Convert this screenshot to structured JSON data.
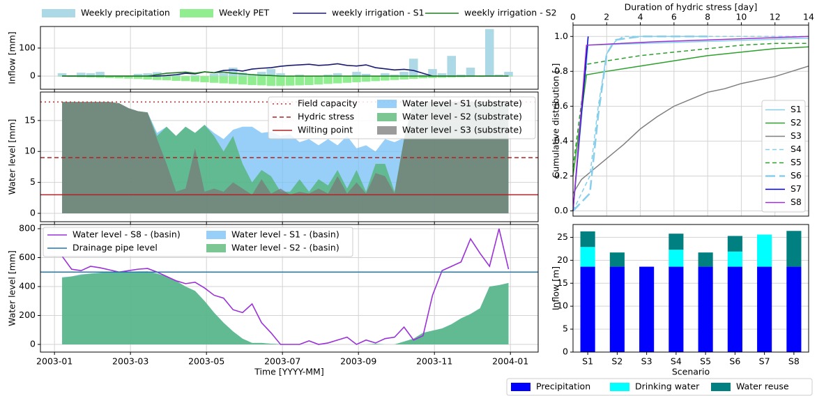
{
  "chart_data": [
    {
      "type": "combo",
      "ylabel": "Inflow [mm]",
      "grid": true,
      "xlim": [
        -0.37,
        12.73
      ],
      "xticks": [
        0,
        2,
        4,
        6,
        8,
        10,
        12
      ],
      "ylim": [
        -47,
        177
      ],
      "yticks": [
        0,
        100
      ],
      "x": [
        0.2,
        0.45,
        0.7,
        0.95,
        1.2,
        1.45,
        1.7,
        1.95,
        2.2,
        2.45,
        2.7,
        2.95,
        3.2,
        3.45,
        3.7,
        3.95,
        4.2,
        4.45,
        4.7,
        4.95,
        5.2,
        5.45,
        5.7,
        5.95,
        6.2,
        6.45,
        6.7,
        6.95,
        7.2,
        7.45,
        7.7,
        7.95,
        8.2,
        8.45,
        8.7,
        8.95,
        9.2,
        9.45,
        9.7,
        9.95,
        10.2,
        10.45,
        10.7,
        10.95,
        11.2,
        11.45,
        11.7,
        11.95
      ],
      "series": [
        {
          "name": "Weekly precipitation",
          "kind": "bar",
          "color": "#add8e6",
          "values": [
            10,
            3,
            12,
            10,
            15,
            0,
            0,
            0,
            8,
            10,
            14,
            2,
            5,
            0,
            3,
            0,
            8,
            10,
            30,
            12,
            5,
            15,
            25,
            10,
            0,
            5,
            0,
            0,
            5,
            10,
            0,
            15,
            8,
            0,
            10,
            5,
            15,
            62,
            5,
            25,
            10,
            72,
            5,
            30,
            0,
            168,
            5,
            15
          ]
        },
        {
          "name": "Weekly PET",
          "kind": "bar",
          "color": "#90ee90",
          "values": [
            -2,
            -3,
            -4,
            -5,
            -6,
            -7,
            -8,
            -9,
            -10,
            -12,
            -14,
            -15,
            -17,
            -18,
            -20,
            -22,
            -24,
            -26,
            -28,
            -30,
            -32,
            -33,
            -35,
            -35,
            -34,
            -33,
            -32,
            -30,
            -28,
            -26,
            -24,
            -22,
            -20,
            -18,
            -16,
            -14,
            -12,
            -10,
            -8,
            -7,
            -6,
            -5,
            -4,
            -3,
            -3,
            -2,
            -2,
            -2
          ]
        },
        {
          "name": "weekly irrigation - S1",
          "kind": "line",
          "color": "#191970",
          "values": [
            0,
            0,
            0,
            0,
            0,
            0,
            0,
            0,
            0,
            0,
            0,
            2,
            5,
            10,
            8,
            15,
            12,
            20,
            22,
            18,
            25,
            28,
            30,
            35,
            38,
            40,
            42,
            38,
            40,
            44,
            38,
            36,
            40,
            30,
            26,
            22,
            24,
            20,
            10,
            0,
            0,
            0,
            0,
            0,
            0,
            0,
            0,
            0
          ]
        },
        {
          "name": "weekly irrigation - S2",
          "kind": "line",
          "color": "#1e7b1e",
          "values": [
            0,
            0,
            0,
            0,
            0,
            0,
            0,
            0,
            0,
            0,
            5,
            10,
            12,
            14,
            10,
            15,
            12,
            14,
            10,
            8,
            5,
            3,
            2,
            0,
            0,
            0,
            0,
            0,
            0,
            0,
            0,
            0,
            0,
            0,
            0,
            0,
            0,
            0,
            0,
            0,
            0,
            0,
            0,
            0,
            0,
            0,
            0,
            0
          ]
        }
      ]
    },
    {
      "type": "combo",
      "ylabel": "Water level [mm]",
      "grid": true,
      "xlim": [
        -0.37,
        12.73
      ],
      "xticks": [
        0,
        2,
        4,
        6,
        8,
        10,
        12
      ],
      "ylim": [
        -1.35,
        19.6
      ],
      "yticks": [
        0,
        5,
        10,
        15
      ],
      "x": [
        0.2,
        0.45,
        0.7,
        0.95,
        1.2,
        1.45,
        1.7,
        1.95,
        2.2,
        2.45,
        2.7,
        2.95,
        3.2,
        3.45,
        3.7,
        3.95,
        4.2,
        4.45,
        4.7,
        4.95,
        5.2,
        5.45,
        5.7,
        5.95,
        6.2,
        6.45,
        6.7,
        6.95,
        7.2,
        7.45,
        7.7,
        7.95,
        8.2,
        8.45,
        8.7,
        8.95,
        9.2,
        9.45,
        9.7,
        9.95,
        10.2,
        10.45,
        10.7,
        10.95,
        11.2,
        11.45,
        11.7,
        11.95
      ],
      "series": [
        {
          "name": "Field capacity",
          "kind": "hline",
          "linestyle": "dotted",
          "color": "#d62728",
          "value": 18
        },
        {
          "name": "Hydric stress",
          "kind": "hline",
          "linestyle": "dashed",
          "color": "#b22222",
          "value": 9
        },
        {
          "name": "Wilting point",
          "kind": "hline",
          "linestyle": "solid",
          "color": "#b22222",
          "value": 3
        },
        {
          "name": "Water level -  S1 (substrate)",
          "kind": "area",
          "color": "#74bff5",
          "values": [
            18,
            18,
            18,
            18,
            18,
            18,
            17.8,
            17,
            16.5,
            16.3,
            13,
            14,
            12.5,
            14,
            13,
            14.3,
            13,
            12,
            13.5,
            14,
            14,
            13,
            13.2,
            12.5,
            12.8,
            11.5,
            12,
            11,
            12,
            11,
            12.5,
            10.5,
            11,
            10,
            12,
            11.5,
            12.2,
            18,
            18,
            18,
            18,
            18,
            18,
            18,
            18,
            18,
            18,
            18
          ]
        },
        {
          "name": "Water level - S2 (substrate)",
          "kind": "area",
          "color": "#4fb36f",
          "values": [
            18,
            18,
            18,
            18,
            18,
            18,
            17.8,
            17,
            16.5,
            16.3,
            12.5,
            14,
            12.5,
            14,
            13,
            14.3,
            12.5,
            10,
            12.5,
            8,
            5,
            7,
            6,
            3.5,
            3.5,
            5.5,
            3.5,
            5.5,
            4.5,
            7,
            4,
            7,
            3.5,
            8,
            8,
            3.5,
            12,
            18,
            18,
            18,
            18,
            18,
            18,
            18,
            18,
            18,
            18,
            18
          ]
        },
        {
          "name": "Water level - S3 (substrate)",
          "kind": "area",
          "color": "#7a7a7a",
          "values": [
            18,
            18,
            18,
            18,
            18,
            18,
            17.8,
            17,
            16.5,
            16.3,
            12,
            8,
            3.5,
            4,
            10.5,
            3.5,
            4,
            3.5,
            5,
            4,
            3,
            5.5,
            3.2,
            4,
            3,
            3.5,
            3.2,
            4,
            3.2,
            6,
            3.2,
            5,
            3.2,
            6.5,
            6,
            3.2,
            12,
            18,
            18,
            18,
            18,
            18,
            18,
            18,
            18,
            18,
            18,
            18
          ]
        }
      ]
    },
    {
      "type": "combo",
      "ylabel": "Water level [mm]",
      "xlabel": "Time [YYYY-MM]",
      "grid": true,
      "xlim": [
        -0.37,
        12.73
      ],
      "xticks": [
        {
          "value": 0,
          "label": "2003-01"
        },
        {
          "value": 2,
          "label": "2003-03"
        },
        {
          "value": 4,
          "label": "2003-05"
        },
        {
          "value": 6,
          "label": "2003-07"
        },
        {
          "value": 8,
          "label": "2003-09"
        },
        {
          "value": 10,
          "label": "2003-11"
        },
        {
          "value": 12,
          "label": "2004-01"
        }
      ],
      "ylim": [
        -53,
        829
      ],
      "yticks": [
        0,
        200,
        400,
        600,
        800
      ],
      "x": [
        0.2,
        0.45,
        0.7,
        0.95,
        1.2,
        1.45,
        1.7,
        1.95,
        2.2,
        2.45,
        2.7,
        2.95,
        3.2,
        3.45,
        3.7,
        3.95,
        4.2,
        4.45,
        4.7,
        4.95,
        5.2,
        5.45,
        5.7,
        5.95,
        6.2,
        6.45,
        6.7,
        6.95,
        7.2,
        7.45,
        7.7,
        7.95,
        8.2,
        8.45,
        8.7,
        8.95,
        9.2,
        9.45,
        9.7,
        9.95,
        10.2,
        10.45,
        10.7,
        10.95,
        11.2,
        11.45,
        11.7,
        11.95
      ],
      "series": [
        {
          "name": "Water level - S8 - (basin)",
          "kind": "line",
          "color": "#9b30d9",
          "values": [
            610,
            520,
            510,
            540,
            530,
            515,
            500,
            510,
            520,
            525,
            500,
            470,
            440,
            420,
            430,
            390,
            340,
            320,
            240,
            220,
            280,
            150,
            80,
            0,
            0,
            0,
            25,
            0,
            10,
            30,
            50,
            0,
            30,
            10,
            40,
            50,
            120,
            30,
            60,
            340,
            510,
            540,
            570,
            730,
            630,
            540,
            800,
            520
          ]
        },
        {
          "name": "Drainage pipe level",
          "kind": "hline",
          "linestyle": "solid",
          "color": "#1f77b4",
          "value": 500
        },
        {
          "name": "Water level - S1 - (basin)",
          "kind": "area",
          "color": "#74bff5",
          "values": [
            465,
            470,
            485,
            490,
            495,
            500,
            505,
            500,
            505,
            505,
            490,
            470,
            440,
            400,
            370,
            300,
            220,
            150,
            90,
            40,
            10,
            10,
            5,
            2,
            0,
            0,
            0,
            0,
            0,
            0,
            0,
            0,
            0,
            5,
            0,
            0,
            20,
            40,
            80,
            95,
            110,
            140,
            180,
            210,
            250,
            400,
            410,
            425
          ]
        },
        {
          "name": "Water level - S2 - (basin)",
          "kind": "area",
          "color": "#4fb36f",
          "values": [
            460,
            470,
            480,
            490,
            495,
            500,
            500,
            500,
            500,
            505,
            490,
            470,
            440,
            400,
            370,
            300,
            220,
            150,
            90,
            40,
            10,
            10,
            5,
            2,
            0,
            0,
            0,
            0,
            0,
            0,
            0,
            0,
            0,
            5,
            0,
            0,
            20,
            40,
            80,
            95,
            110,
            140,
            180,
            210,
            250,
            400,
            410,
            425
          ]
        }
      ]
    },
    {
      "type": "line",
      "xlabel": "Duration of hydric stress [day]",
      "ylabel": "Cumulative distribution [-]",
      "grid": true,
      "legend": "lower right",
      "xlim": [
        0,
        14
      ],
      "xticks": [
        0,
        2,
        4,
        6,
        8,
        10,
        12,
        14
      ],
      "ylim": [
        -0.03,
        1.065
      ],
      "yticks": [
        {
          "value": 0,
          "label": "0.0"
        },
        0.2,
        0.4,
        0.6,
        0.8,
        {
          "value": 1,
          "label": "1.0"
        }
      ],
      "series": [
        {
          "name": "S1",
          "color": "#87ceeb",
          "linestyle": "solid",
          "x": [
            0,
            0.9,
            14
          ],
          "y": [
            0,
            0.95,
            0.99
          ]
        },
        {
          "name": "S2",
          "color": "#2ca02c",
          "linestyle": "solid",
          "x": [
            0,
            0.8,
            2,
            4,
            6,
            8,
            10,
            12,
            14
          ],
          "y": [
            0.2,
            0.78,
            0.8,
            0.83,
            0.86,
            0.89,
            0.91,
            0.93,
            0.94
          ]
        },
        {
          "name": "S3",
          "color": "#7f7f7f",
          "linestyle": "solid",
          "x": [
            0,
            0.5,
            1,
            2,
            3,
            4,
            5,
            6,
            7,
            8,
            9,
            10,
            11,
            12,
            13,
            14
          ],
          "y": [
            0.1,
            0.18,
            0.22,
            0.3,
            0.38,
            0.47,
            0.54,
            0.6,
            0.64,
            0.68,
            0.7,
            0.73,
            0.75,
            0.77,
            0.8,
            0.83
          ]
        },
        {
          "name": "S4",
          "color": "#87ceeb",
          "linestyle": "dashed",
          "x": [
            0,
            1,
            1.5,
            2,
            2.5,
            3,
            14
          ],
          "y": [
            0,
            0.2,
            0.6,
            0.9,
            0.97,
            1,
            1
          ]
        },
        {
          "name": "S5",
          "color": "#2ca02c",
          "linestyle": "dashed",
          "x": [
            0,
            0.8,
            2,
            4,
            6,
            8,
            10,
            12,
            14
          ],
          "y": [
            0.25,
            0.84,
            0.86,
            0.89,
            0.91,
            0.93,
            0.95,
            0.96,
            0.96
          ]
        },
        {
          "name": "S6",
          "color": "#87ceeb",
          "linestyle": "longdash",
          "x": [
            0,
            1,
            1.5,
            2,
            2.5,
            4,
            8
          ],
          "y": [
            0,
            0.1,
            0.55,
            0.9,
            0.98,
            1,
            1
          ]
        },
        {
          "name": "S7",
          "color": "#0000cd",
          "linestyle": "solid",
          "x": [
            0,
            0.9
          ],
          "y": [
            0,
            1
          ]
        },
        {
          "name": "S8",
          "color": "#9932cc",
          "linestyle": "solid",
          "x": [
            0,
            0.8,
            5,
            14
          ],
          "y": [
            0,
            0.95,
            0.97,
            1
          ]
        }
      ]
    },
    {
      "type": "stacked_bar",
      "xlabel": "Scenario",
      "ylabel": "Inflow [m]",
      "grid": true,
      "legend": "below",
      "categories": [
        "S1",
        "S2",
        "S3",
        "S4",
        "S5",
        "S6",
        "S7",
        "S8"
      ],
      "ylim": [
        0,
        27.8
      ],
      "yticks": [
        0,
        5,
        10,
        15,
        20,
        25
      ],
      "series": [
        {
          "name": "Precipitation",
          "color": "#0000ff",
          "values": [
            18.6,
            18.6,
            18.6,
            18.6,
            18.6,
            18.6,
            18.6,
            18.6
          ]
        },
        {
          "name": "Drinking water",
          "color": "#00ffff",
          "values": [
            4.3,
            0,
            0,
            3.7,
            0,
            3.3,
            7,
            0
          ]
        },
        {
          "name": "Water reuse",
          "color": "#008080",
          "values": [
            3.4,
            3.1,
            0,
            3.5,
            3.1,
            3.4,
            0,
            7.8
          ]
        }
      ]
    }
  ]
}
